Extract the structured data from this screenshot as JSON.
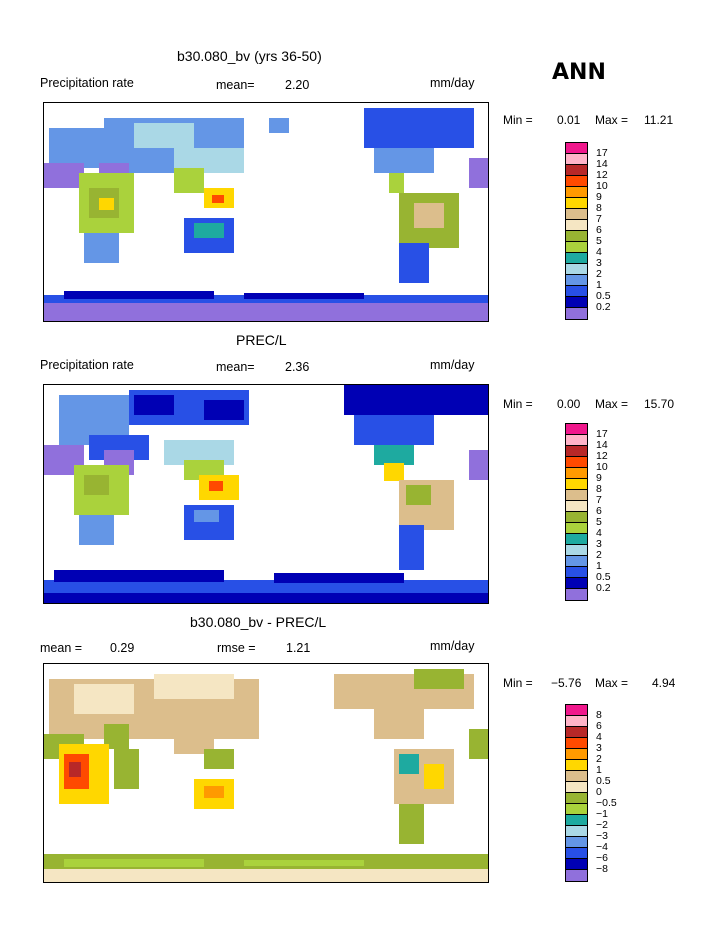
{
  "season": "ANN",
  "panels": [
    {
      "title": "b30.080_bv (yrs 36-50)",
      "left": "Precipitation rate",
      "mean_label": "mean=",
      "mean_value": "2.20",
      "units": "mm/day",
      "min_label": "Min =",
      "min_value": "0.01",
      "max_label": "Max =",
      "max_value": "11.21",
      "levels": [
        "17",
        "14",
        "12",
        "10",
        "9",
        "8",
        "7",
        "6",
        "5",
        "4",
        "3",
        "2",
        "1",
        "0.5",
        "0.2"
      ]
    },
    {
      "title": "PREC/L",
      "left": "Precipitation rate",
      "mean_label": "mean=",
      "mean_value": "2.36",
      "units": "mm/day",
      "min_label": "Min =",
      "min_value": "0.00",
      "max_label": "Max =",
      "max_value": "15.70",
      "levels": [
        "17",
        "14",
        "12",
        "10",
        "9",
        "8",
        "7",
        "6",
        "5",
        "4",
        "3",
        "2",
        "1",
        "0.5",
        "0.2"
      ]
    },
    {
      "title": "b30.080_bv - PREC/L",
      "mean_label": "mean =",
      "mean_value": "0.29",
      "rmse_label": "rmse =",
      "rmse_value": "1.21",
      "units": "mm/day",
      "min_label": "Min =",
      "min_value": "−5.76",
      "max_label": "Max =",
      "max_value": "4.94",
      "levels": [
        "8",
        "6",
        "4",
        "3",
        "2",
        "1",
        "0.5",
        "0",
        "−0.5",
        "−1",
        "−2",
        "−3",
        "−4",
        "−6",
        "−8"
      ]
    }
  ],
  "colors": {
    "scale": [
      "#f0188c",
      "#ffb4c8",
      "#b82828",
      "#ff4a00",
      "#ff9a00",
      "#ffd700",
      "#dcbe8c",
      "#f5e6c3",
      "#98b432",
      "#aad23c",
      "#1eaaa0",
      "#aad8e6",
      "#6496e6",
      "#2850e6",
      "#0000b4",
      "#9070dc"
    ]
  }
}
